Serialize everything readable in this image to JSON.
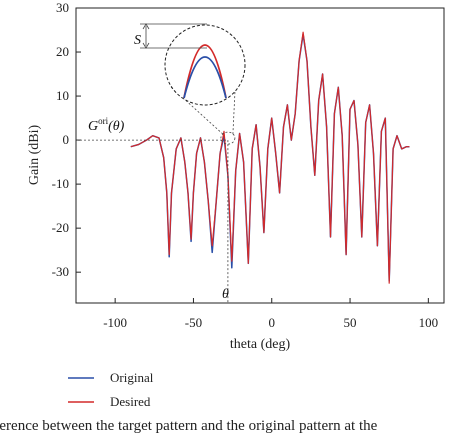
{
  "chart_data": {
    "type": "line",
    "xlabel": "theta (deg)",
    "ylabel": "Gain (dBi)",
    "xlim": [
      -125,
      110
    ],
    "ylim": [
      -37,
      30
    ],
    "xticks": [
      -100,
      -50,
      0,
      50,
      100
    ],
    "yticks": [
      -30,
      -20,
      -10,
      0,
      10,
      20,
      30
    ],
    "grid": false,
    "legend_position": "bottom-left",
    "series": [
      {
        "name": "Original",
        "color": "#2a4fa8",
        "x": [
          -90,
          -85,
          -80,
          -76,
          -72,
          -69,
          -67,
          -65.5,
          -64,
          -61,
          -58,
          -55.5,
          -53.5,
          -51.5,
          -50,
          -48,
          -45.5,
          -43,
          -40.5,
          -38,
          -35.5,
          -33,
          -30.5,
          -28,
          -25.5,
          -23,
          -20.5,
          -18,
          -15,
          -12.5,
          -10,
          -7.5,
          -5,
          -2.5,
          0,
          2.5,
          5,
          7.5,
          10,
          12.5,
          15,
          17.5,
          20,
          22.5,
          25,
          27.5,
          30,
          32.5,
          35,
          37.5,
          40,
          42.5,
          45,
          47.5,
          50,
          52.5,
          55,
          57.5,
          60,
          62.5,
          65,
          67.5,
          70,
          72.5,
          75,
          77.5,
          80,
          83,
          86,
          88
        ],
        "values": [
          -1.5,
          -1,
          0,
          1,
          0.5,
          -4,
          -12,
          -26.5,
          -12,
          -2,
          0.5,
          -5,
          -12,
          -23,
          -12,
          -3,
          0.5,
          -5,
          -14,
          -25.5,
          -14,
          -3,
          1,
          -8,
          -29,
          -7,
          1.5,
          -5,
          -28,
          -2,
          3.5,
          -6,
          -21,
          -2,
          5,
          -3,
          -12,
          3,
          8,
          0,
          6,
          18,
          24,
          18,
          3,
          -8,
          9,
          15,
          3,
          -22,
          6,
          12,
          1,
          -26,
          7,
          9,
          -1,
          -22,
          4,
          8,
          -3,
          -24,
          2,
          5,
          -32,
          -2,
          1,
          -2,
          -1.5,
          -1.5
        ]
      },
      {
        "name": "Desired",
        "color": "#d42a2a",
        "x": [
          -90,
          -85,
          -80,
          -76,
          -72,
          -69,
          -67,
          -65.5,
          -64,
          -61,
          -58,
          -55.5,
          -53.5,
          -51.5,
          -50,
          -48,
          -45.5,
          -43,
          -40.5,
          -38,
          -35.5,
          -33,
          -30.5,
          -28,
          -25.5,
          -23,
          -20.5,
          -18,
          -15,
          -12.5,
          -10,
          -7.5,
          -5,
          -2.5,
          0,
          2.5,
          5,
          7.5,
          10,
          12.5,
          15,
          17.5,
          20,
          22.5,
          25,
          27.5,
          30,
          32.5,
          35,
          37.5,
          40,
          42.5,
          45,
          47.5,
          50,
          52.5,
          55,
          57.5,
          60,
          62.5,
          65,
          67.5,
          70,
          72.5,
          75,
          77.5,
          80,
          83,
          86,
          88
        ],
        "values": [
          -1.5,
          -1,
          0,
          1,
          0.5,
          -4,
          -12,
          -26,
          -12,
          -2,
          0.5,
          -5,
          -12,
          -22.5,
          -12,
          -3,
          0.5,
          -5,
          -14,
          -24,
          -14,
          -3,
          2,
          -8,
          -27.5,
          -7,
          1.5,
          -5,
          -28,
          -2,
          3.5,
          -6,
          -21,
          -2,
          5,
          -3,
          -12,
          3,
          8,
          0,
          6,
          18,
          24.5,
          18,
          3,
          -8,
          9,
          15,
          3,
          -22,
          6,
          12,
          1,
          -26,
          7,
          9,
          -1,
          -22,
          4,
          8,
          -3,
          -24,
          2,
          5,
          -32.5,
          -2,
          1,
          -2,
          -1.5,
          -1.5
        ]
      }
    ],
    "annotations": {
      "s_label": "S",
      "g_base": "G",
      "g_sup": "ori",
      "g_arg": "(θ)",
      "theta_label": "θ"
    }
  },
  "caption": "difference between the target pattern and the original pattern at the"
}
